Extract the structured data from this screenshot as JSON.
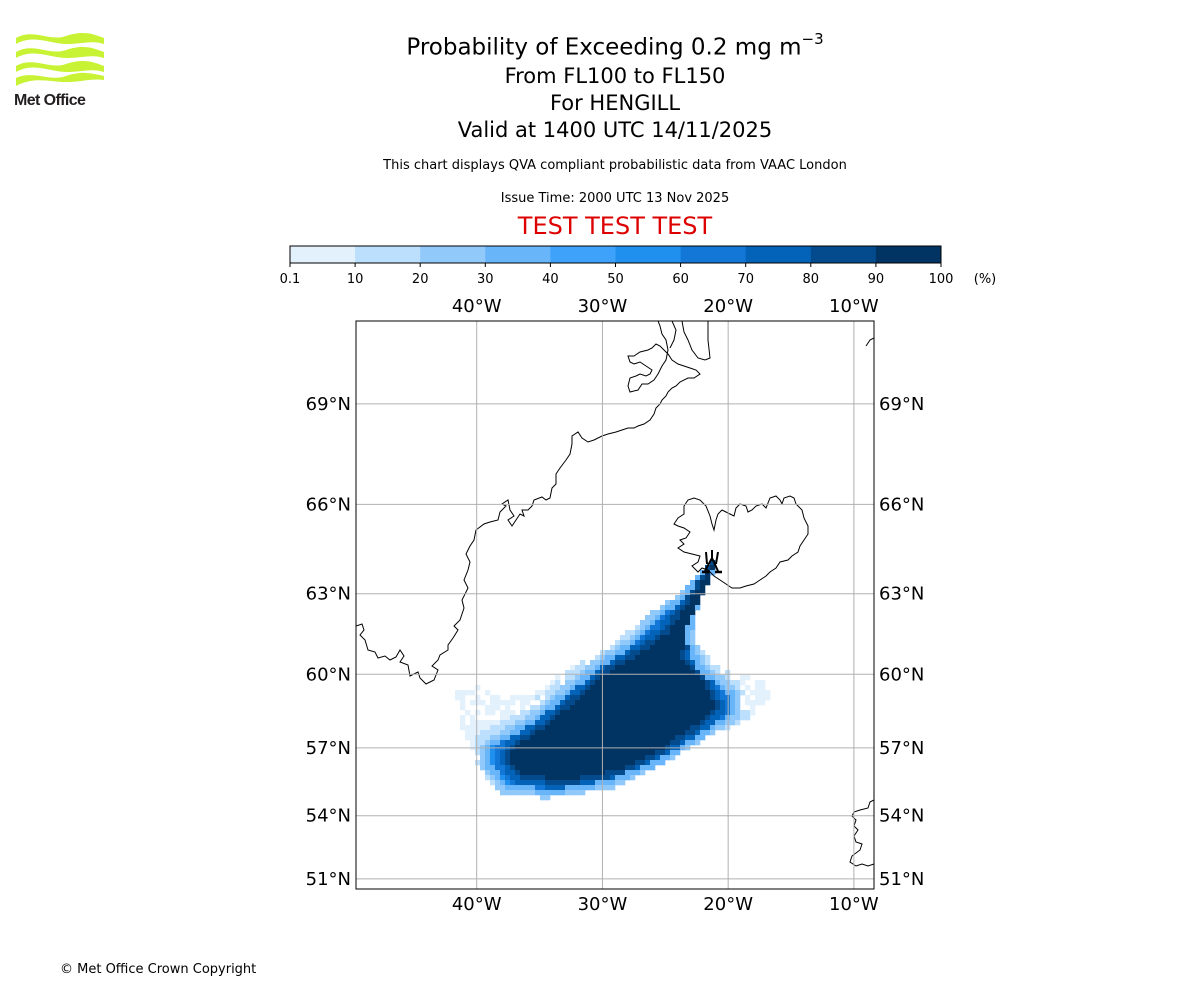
{
  "header": {
    "logo_text": "Met Office",
    "title_main": "Probability of Exceeding 0.2 mg m",
    "title_superscript": "−3",
    "level_range": "From FL100 to FL150",
    "volcano_line": "For HENGILL",
    "valid_line": "Valid at 1400 UTC 14/11/2025",
    "disclaimer": "This chart displays QVA compliant probabilistic data from VAAC London",
    "issue_time": "Issue Time: 2000 UTC 13 Nov 2025",
    "test_banner": "TEST TEST TEST",
    "test_banner_color": "#dd0000"
  },
  "footer": {
    "copyright": "© Met Office Crown Copyright"
  },
  "chart_data": {
    "type": "heatmap",
    "title": "Probability of Exceeding 0.2 mg m−3",
    "subtitle": "From FL100 to FL150 / For HENGILL / Valid at 1400 UTC 14/11/2025",
    "units": "(%)",
    "colorbar": {
      "boundaries": [
        0.1,
        10,
        20,
        30,
        40,
        50,
        60,
        70,
        80,
        90,
        100
      ],
      "tick_labels": [
        "0.1",
        "10",
        "20",
        "30",
        "40",
        "50",
        "60",
        "70",
        "80",
        "90",
        "100"
      ],
      "colors": [
        "#e3f1fd",
        "#bbdffc",
        "#91c9fb",
        "#68b5fa",
        "#3fa2fa",
        "#2090ef",
        "#1277d6",
        "#0363b8",
        "#034b8c",
        "#023463"
      ],
      "units_label": "(%)"
    },
    "map": {
      "lon_range": [
        -49.6,
        -8.4
      ],
      "lat_range": [
        50.5,
        71.2
      ],
      "lon_ticks": [
        -40,
        -30,
        -20,
        -10
      ],
      "lon_tick_labels": [
        "40°W",
        "30°W",
        "20°W",
        "10°W"
      ],
      "lat_ticks": [
        51,
        54,
        57,
        60,
        63,
        66,
        69
      ],
      "lat_tick_labels": [
        "51°N",
        "54°N",
        "57°N",
        "60°N",
        "63°N",
        "66°N",
        "69°N"
      ],
      "grid": true,
      "volcano": {
        "name": "HENGILL",
        "lon": -21.3,
        "lat": 64.1,
        "symbol": "volcano-icon"
      }
    },
    "probability_field": {
      "description": "Ash plume extending SW from Hengill over the North Atlantic",
      "core_90_100_outline": [
        [
          -21.3,
          64.0
        ],
        [
          -22.8,
          62.9
        ],
        [
          -24.8,
          61.6
        ],
        [
          -27.0,
          60.8
        ],
        [
          -29.5,
          60.1
        ],
        [
          -32.0,
          59.0
        ],
        [
          -34.5,
          57.9
        ],
        [
          -37.0,
          57.0
        ],
        [
          -37.5,
          56.6
        ],
        [
          -36.5,
          55.9
        ],
        [
          -33.0,
          55.6
        ],
        [
          -29.0,
          56.0
        ],
        [
          -25.5,
          56.9
        ],
        [
          -22.5,
          58.0
        ],
        [
          -21.0,
          58.7
        ],
        [
          -22.0,
          59.7
        ],
        [
          -23.8,
          60.6
        ],
        [
          -23.2,
          62.0
        ],
        [
          -21.8,
          63.1
        ],
        [
          -21.1,
          64.0
        ]
      ],
      "mid_40_80_outline": [
        [
          -21.2,
          64.2
        ],
        [
          -23.5,
          62.8
        ],
        [
          -25.2,
          62.2
        ],
        [
          -27.5,
          61.1
        ],
        [
          -30.0,
          60.3
        ],
        [
          -32.5,
          59.3
        ],
        [
          -35.0,
          58.2
        ],
        [
          -37.2,
          57.5
        ],
        [
          -38.8,
          57.0
        ],
        [
          -39.0,
          56.4
        ],
        [
          -37.5,
          55.4
        ],
        [
          -34.0,
          55.2
        ],
        [
          -29.5,
          55.6
        ],
        [
          -25.5,
          56.5
        ],
        [
          -22.0,
          57.7
        ],
        [
          -19.8,
          58.5
        ],
        [
          -20.0,
          59.2
        ],
        [
          -22.5,
          60.2
        ],
        [
          -23.5,
          61.5
        ],
        [
          -22.5,
          62.6
        ],
        [
          -21.0,
          64.1
        ]
      ],
      "low_0_30_outline": [
        [
          -21.1,
          64.3
        ],
        [
          -23.8,
          63.0
        ],
        [
          -26.0,
          62.4
        ],
        [
          -28.5,
          61.4
        ],
        [
          -30.5,
          60.8
        ],
        [
          -33.5,
          60.0
        ],
        [
          -36.0,
          59.3
        ],
        [
          -38.0,
          59.0
        ],
        [
          -40.0,
          59.6
        ],
        [
          -41.6,
          59.3
        ],
        [
          -41.8,
          58.5
        ],
        [
          -40.2,
          56.4
        ],
        [
          -38.2,
          55.0
        ],
        [
          -34.5,
          54.8
        ],
        [
          -29.5,
          55.2
        ],
        [
          -25.5,
          56.2
        ],
        [
          -21.5,
          57.5
        ],
        [
          -18.5,
          58.2
        ],
        [
          -17.0,
          58.8
        ],
        [
          -16.5,
          59.6
        ],
        [
          -18.5,
          59.9
        ],
        [
          -21.0,
          60.3
        ],
        [
          -22.5,
          61.2
        ],
        [
          -22.5,
          62.4
        ],
        [
          -20.8,
          64.2
        ]
      ]
    }
  }
}
